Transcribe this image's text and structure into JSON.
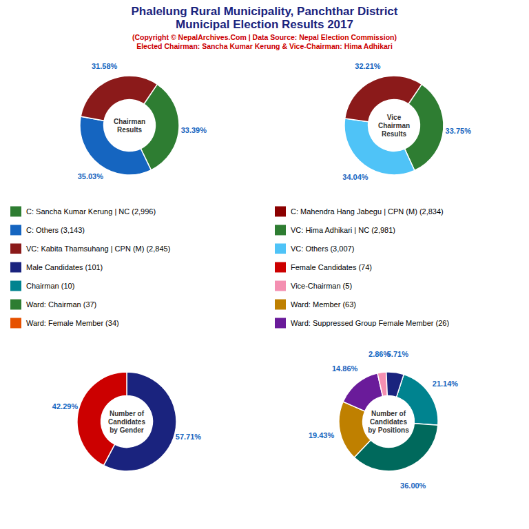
{
  "title": [
    "Phalelung Rural Municipality, Panchthar District",
    "Municipal Election Results 2017"
  ],
  "title_color": "#1a237e",
  "subtitle": [
    "(Copyright © NepalArchives.Com | Data Source: Nepal Election Commission)",
    "Elected Chairman: Sancha Kumar Kerung & Vice-Chairman: Hima Adhikari"
  ],
  "subtitle_color": "#cc0000",
  "legend_items": [
    {
      "label": "C: Sancha Kumar Kerung | NC (2,996)",
      "color": "#2e7d32"
    },
    {
      "label": "C: Others (3,143)",
      "color": "#1565c0"
    },
    {
      "label": "VC: Kabita Thamsuhang | CPN (M) (2,845)",
      "color": "#8b1a1a"
    },
    {
      "label": "Male Candidates (101)",
      "color": "#1a237e"
    },
    {
      "label": "Chairman (10)",
      "color": "#00838f"
    },
    {
      "label": "Ward: Chairman (37)",
      "color": "#2e7d32"
    },
    {
      "label": "Ward: Female Member (34)",
      "color": "#e65100"
    },
    {
      "label": "C: Mahendra Hang Jabegu | CPN (M) (2,834)",
      "color": "#8b0000"
    },
    {
      "label": "VC: Hima Adhikari | NC (2,981)",
      "color": "#2e7d32"
    },
    {
      "label": "VC: Others (3,007)",
      "color": "#4fc3f7"
    },
    {
      "label": "Female Candidates (74)",
      "color": "#cc0000"
    },
    {
      "label": "Vice-Chairman (5)",
      "color": "#f48fb1"
    },
    {
      "label": "Ward: Member (63)",
      "color": "#bf8000"
    },
    {
      "label": "Ward: Suppressed Group Female Member (26)",
      "color": "#6a1b9a"
    }
  ],
  "chart_data": [
    {
      "type": "donut",
      "title": "Chairman\nResults",
      "values": [
        33.39,
        35.03,
        31.58
      ],
      "value_labels": [
        "33.39%",
        "35.03%",
        "31.58%"
      ],
      "colors": [
        "#2e7d32",
        "#1565c0",
        "#8b1a1a"
      ],
      "data_labels": true,
      "label_color": "#1565c0"
    },
    {
      "type": "donut",
      "title": "Vice\nChairman\nResults",
      "values": [
        33.75,
        34.04,
        32.21
      ],
      "value_labels": [
        "33.75%",
        "34.04%",
        "32.21%"
      ],
      "colors": [
        "#2e7d32",
        "#4fc3f7",
        "#8b1a1a"
      ],
      "data_labels": true,
      "label_color": "#1565c0"
    },
    {
      "type": "donut",
      "title": "Number of\nCandidates\nby Gender",
      "values": [
        57.71,
        42.29
      ],
      "value_labels": [
        "57.71%",
        "42.29%"
      ],
      "colors": [
        "#1a237e",
        "#cc0000"
      ],
      "data_labels": true,
      "label_color": "#1565c0"
    },
    {
      "type": "donut",
      "title": "Number of\nCandidates\nby Positions",
      "values": [
        21.14,
        36.0,
        19.43,
        14.86,
        2.86,
        5.71
      ],
      "value_labels": [
        "21.14%",
        "36.00%",
        "19.43%",
        "14.86%",
        "2.86%",
        "5.71%"
      ],
      "colors": [
        "#00838f",
        "#00695c",
        "#bf8000",
        "#6a1b9a",
        "#f48fb1",
        "#1a237e"
      ],
      "data_labels": true,
      "label_color": "#1565c0"
    }
  ]
}
